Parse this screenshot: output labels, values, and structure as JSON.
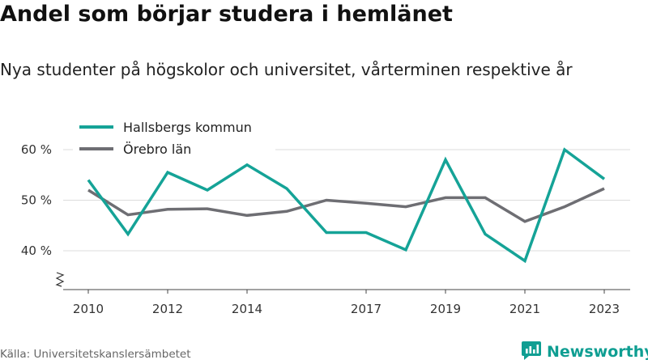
{
  "title": "Andel som börjar studera i hemlänet",
  "subtitle": "Nya studenter på högskolor och universitet, vårterminen respektive år",
  "source": "Källa: Universitetskanslersämbetet",
  "brand": {
    "name": "Newsworthy",
    "icon": "newsworthy-logo-icon",
    "color": "#0f9e92"
  },
  "chart_data": {
    "type": "line",
    "x": [
      2010,
      2011,
      2012,
      2013,
      2014,
      2015,
      2016,
      2017,
      2018,
      2019,
      2020,
      2021,
      2022,
      2023
    ],
    "x_tick_labels": [
      "2010",
      "2012",
      "2014",
      "2017",
      "2019",
      "2021",
      "2023"
    ],
    "x_tick_values": [
      2010,
      2012,
      2014,
      2017,
      2019,
      2021,
      2023
    ],
    "y_tick_labels": [
      "40 %",
      "50 %",
      "60 %"
    ],
    "y_tick_values": [
      40,
      50,
      60
    ],
    "ylim": [
      33,
      62
    ],
    "xlim": [
      2009.3,
      2024.1
    ],
    "y_axis_break": true,
    "grid": true,
    "legend_position": "top-left",
    "series": [
      {
        "name": "Hallsbergs kommun",
        "color": "#15a397",
        "values": [
          54,
          43.3,
          55.5,
          52,
          57,
          52.3,
          43.6,
          43.6,
          40.2,
          58,
          43.3,
          38,
          60,
          54.2
        ]
      },
      {
        "name": "Örebro län",
        "color": "#6e6e73",
        "values": [
          52,
          47.1,
          48.2,
          48.3,
          47,
          47.8,
          50,
          49.4,
          48.7,
          50.5,
          50.5,
          45.8,
          48.7,
          52.3
        ]
      }
    ]
  }
}
